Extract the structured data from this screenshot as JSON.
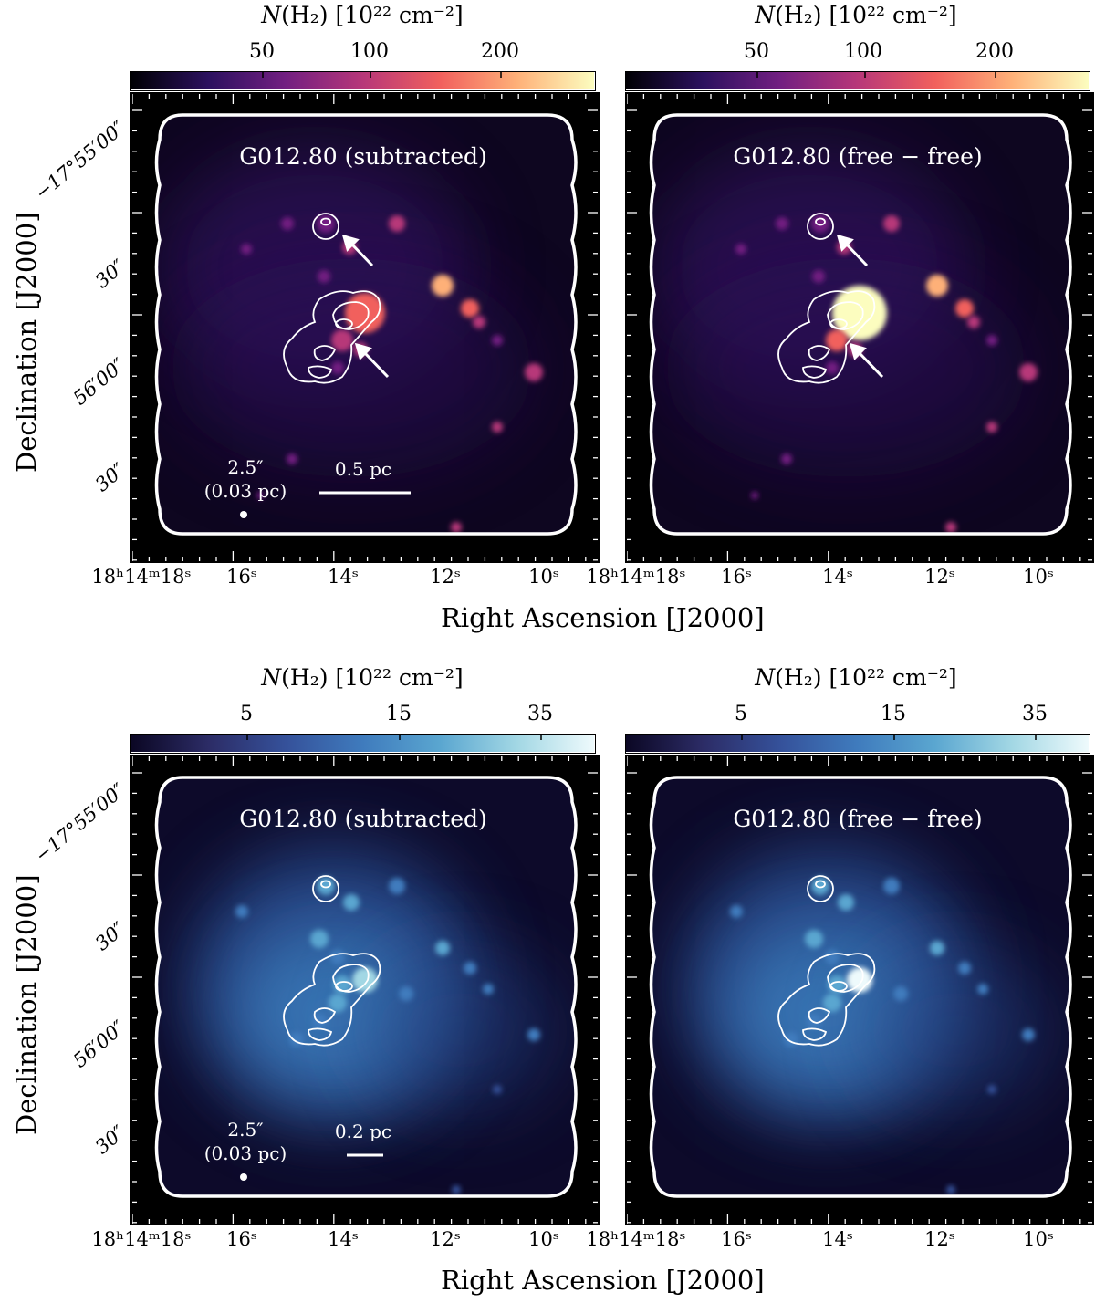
{
  "colorbar_label": {
    "prefix": "N",
    "rest": "(H₂) [10²² cm⁻²]"
  },
  "ra_axis_title": "Right Ascension [J2000]",
  "dec_axis_title": "Declination [J2000]",
  "ra_ticks": [
    "18ʰ14ᵐ18ˢ",
    "16ˢ",
    "14ˢ",
    "12ˢ",
    "10ˢ"
  ],
  "dec_ticks": [
    "−17°55′00″",
    "30″",
    "56′00″",
    "30″"
  ],
  "panel_titles": {
    "subtracted": "G012.80 (subtracted)",
    "freefree": "G012.80 (free − free)"
  },
  "beam": {
    "size": "2.5″",
    "pc": "(0.03 pc)"
  },
  "scalebars": {
    "top": "0.5 pc",
    "bottom": "0.2 pc"
  },
  "top_cbar_ticks": [
    "50",
    "100",
    "200"
  ],
  "bottom_cbar_ticks": [
    "5",
    "15",
    "35"
  ],
  "colormaps": {
    "top": [
      "#000004",
      "#2c115f",
      "#721f81",
      "#b73779",
      "#f1605d",
      "#feb078",
      "#fcfdbf"
    ],
    "bottom": [
      "#0b0724",
      "#2c2c66",
      "#35519a",
      "#3f7bbd",
      "#5aa6d0",
      "#a2d7e4",
      "#eefafc"
    ]
  },
  "panels": [
    {
      "row": "top",
      "kind": "subtracted",
      "arrows": 2
    },
    {
      "row": "top",
      "kind": "freefree",
      "arrows": 2
    },
    {
      "row": "bottom",
      "kind": "subtracted",
      "arrows": 0
    },
    {
      "row": "bottom",
      "kind": "freefree",
      "arrows": 0
    }
  ]
}
